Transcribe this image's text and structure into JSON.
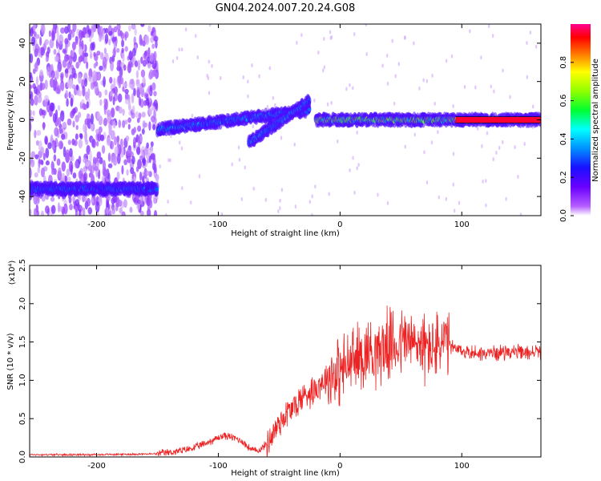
{
  "title": "GN04.2024.007.20.24.G08",
  "chart_data": [
    {
      "type": "heatmap",
      "xlabel": "Height of straight line (km)",
      "ylabel": "Frequency (Hz)",
      "xlim": [
        -255,
        165
      ],
      "ylim": [
        -50,
        50
      ],
      "xticks": [
        -200,
        -100,
        0,
        100
      ],
      "yticks": [
        -40,
        -20,
        0,
        20,
        40
      ],
      "grid": false,
      "colorbar": {
        "label": "Normalized spectral amplitude",
        "range": [
          0,
          1
        ],
        "ticks": [
          "0.0",
          "0.2",
          "0.4",
          "0.6",
          "0.8"
        ],
        "colormap": [
          "#d6a6f5",
          "#8b00ff",
          "#2000ff",
          "#0080ff",
          "#00ffff",
          "#00ff40",
          "#80ff00",
          "#ffff00",
          "#ff8000",
          "#ff0000",
          "#ff0080"
        ]
      },
      "features": [
        {
          "x_range": [
            -255,
            -150
          ],
          "y_range": [
            -50,
            50
          ],
          "amplitude": 0.05,
          "description_key": "scattered low-level noise"
        },
        {
          "x_range": [
            -255,
            -150
          ],
          "y_center": -36,
          "amplitude": 0.3
        },
        {
          "x_range": [
            -150,
            -25
          ],
          "y_center_start": -5,
          "y_center_end": 5,
          "amplitude": 0.35
        },
        {
          "x_range": [
            -75,
            -25
          ],
          "y_center_start": -12,
          "y_center_end": 10,
          "amplitude": 0.35
        },
        {
          "x_range": [
            -20,
            95
          ],
          "y_center": 0,
          "amplitude": 0.6
        },
        {
          "x_range": [
            95,
            165
          ],
          "y_center": 0,
          "amplitude": 0.9
        }
      ]
    },
    {
      "type": "line",
      "xlabel": "Height of straight line (km)",
      "ylabel": "SNR (10 * v/v)",
      "yscale_label": "(x10⁴)",
      "xlim": [
        -255,
        165
      ],
      "ylim": [
        0,
        2.5
      ],
      "xticks": [
        -200,
        -100,
        0,
        100
      ],
      "yticks": [
        0.0,
        0.5,
        1.0,
        1.5,
        2.0,
        2.5
      ],
      "grid": false,
      "series": [
        {
          "color": "#ee2222",
          "x": [
            -255,
            -200,
            -150,
            -140,
            -130,
            -120,
            -110,
            -100,
            -95,
            -90,
            -85,
            -80,
            -75,
            -70,
            -65,
            -60,
            -55,
            -50,
            -45,
            -40,
            -35,
            -30,
            -25,
            -20,
            -15,
            -10,
            -5,
            0,
            5,
            10,
            15,
            20,
            25,
            30,
            35,
            40,
            45,
            50,
            55,
            60,
            65,
            70,
            75,
            80,
            85,
            90,
            95,
            100,
            110,
            120,
            130,
            140,
            150,
            165
          ],
          "y": [
            0.03,
            0.03,
            0.04,
            0.06,
            0.08,
            0.12,
            0.18,
            0.25,
            0.28,
            0.26,
            0.24,
            0.2,
            0.12,
            0.08,
            0.1,
            0.18,
            0.3,
            0.45,
            0.55,
            0.62,
            0.7,
            0.8,
            0.85,
            0.9,
            0.98,
            1.05,
            1.1,
            1.12,
            1.18,
            1.25,
            1.3,
            1.35,
            1.4,
            1.38,
            1.42,
            1.48,
            1.45,
            1.5,
            1.55,
            1.45,
            1.5,
            1.4,
            1.45,
            1.42,
            1.5,
            1.45,
            1.4,
            1.38,
            1.36,
            1.35,
            1.36,
            1.38,
            1.35,
            1.38
          ]
        }
      ]
    }
  ]
}
